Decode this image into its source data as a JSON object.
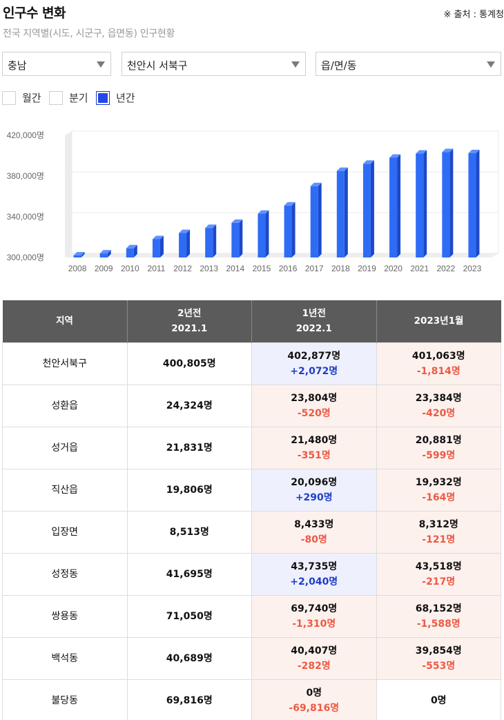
{
  "header": {
    "title": "인구수 변화",
    "source": "※ 출처 : 통계청",
    "subtitle": "전국 지역별(시도, 시군구, 읍면동) 인구현황"
  },
  "filters": {
    "province": "충남",
    "city": "천안시 서북구",
    "dong": "읍/면/동"
  },
  "period_options": [
    {
      "label": "월간",
      "checked": false
    },
    {
      "label": "분기",
      "checked": false
    },
    {
      "label": "년간",
      "checked": true
    }
  ],
  "colors": {
    "bar": "#2f6cf6",
    "bar_side": "#1c49c9",
    "bar_top": "#5f92ff",
    "increase": "#1f3fc4",
    "decrease": "#ec5a43"
  },
  "chart_data": {
    "type": "bar",
    "categories": [
      "2008",
      "2009",
      "2010",
      "2011",
      "2012",
      "2013",
      "2014",
      "2015",
      "2016",
      "2017",
      "2018",
      "2019",
      "2020",
      "2021",
      "2022",
      "2023"
    ],
    "values": [
      302000,
      304000,
      309000,
      318000,
      324000,
      329000,
      334000,
      343000,
      351000,
      370000,
      385000,
      392000,
      398000,
      402000,
      403500,
      402500
    ],
    "yticks": [
      "300,000명",
      "340,000명",
      "380,000명",
      "420,000명"
    ],
    "ylim": [
      300000,
      420000
    ],
    "grid": true
  },
  "table": {
    "headers": [
      {
        "line1": "지역",
        "line2": ""
      },
      {
        "line1": "2년전",
        "line2": "2021.1"
      },
      {
        "line1": "1년전",
        "line2": "2022.1"
      },
      {
        "line1": "2023년1월",
        "line2": ""
      }
    ],
    "rows": [
      {
        "region": "천안서북구",
        "y2021": "400,805명",
        "y2022": "402,877명",
        "d2022": "+2,072명",
        "y2023": "401,063명",
        "d2023": "-1,814명"
      },
      {
        "region": "성환읍",
        "y2021": "24,324명",
        "y2022": "23,804명",
        "d2022": "-520명",
        "y2023": "23,384명",
        "d2023": "-420명"
      },
      {
        "region": "성거읍",
        "y2021": "21,831명",
        "y2022": "21,480명",
        "d2022": "-351명",
        "y2023": "20,881명",
        "d2023": "-599명"
      },
      {
        "region": "직산읍",
        "y2021": "19,806명",
        "y2022": "20,096명",
        "d2022": "+290명",
        "y2023": "19,932명",
        "d2023": "-164명"
      },
      {
        "region": "입장면",
        "y2021": "8,513명",
        "y2022": "8,433명",
        "d2022": "-80명",
        "y2023": "8,312명",
        "d2023": "-121명"
      },
      {
        "region": "성정동",
        "y2021": "41,695명",
        "y2022": "43,735명",
        "d2022": "+2,040명",
        "y2023": "43,518명",
        "d2023": "-217명"
      },
      {
        "region": "쌍용동",
        "y2021": "71,050명",
        "y2022": "69,740명",
        "d2022": "-1,310명",
        "y2023": "68,152명",
        "d2023": "-1,588명"
      },
      {
        "region": "백석동",
        "y2021": "40,689명",
        "y2022": "40,407명",
        "d2022": "-282명",
        "y2023": "39,854명",
        "d2023": "-553명"
      },
      {
        "region": "불당동",
        "y2021": "69,816명",
        "y2022": "0명",
        "d2022": "-69,816명",
        "y2023": "0명",
        "d2023": ""
      }
    ]
  }
}
